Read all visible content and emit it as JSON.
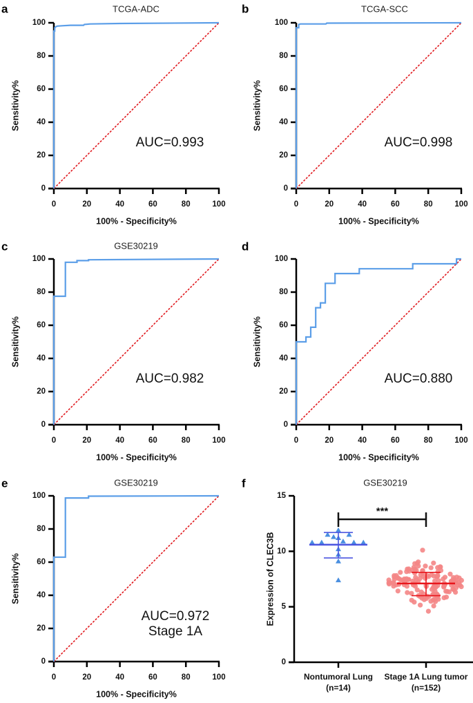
{
  "figure": {
    "colors": {
      "roc_curve": "#5b9ee8",
      "reference_line": "#e0191e",
      "axis": "#000000",
      "nontumoral_points": "#4a8fe0",
      "nontumoral_bars": "#4b55e0",
      "tumor_points": "#f48686",
      "tumor_bars": "#e8151b"
    }
  },
  "chart_data": [
    {
      "panel": "a",
      "type": "line",
      "title": "TCGA-ADC",
      "xlabel": "100% - Specificity%",
      "ylabel": "Sensitivity%",
      "xlim": [
        0,
        100
      ],
      "ylim": [
        0,
        100
      ],
      "xticks": [
        "0",
        "20",
        "40",
        "60",
        "80",
        "100"
      ],
      "yticks": [
        "0",
        "20",
        "40",
        "60",
        "80",
        "100"
      ],
      "annotation": [
        "AUC=0.993"
      ],
      "series": [
        {
          "name": "ROC",
          "x": [
            0,
            0,
            0.5,
            0.5,
            1,
            2,
            5,
            10,
            18,
            18.5,
            22,
            40,
            100
          ],
          "y": [
            0,
            95,
            95,
            97,
            97.5,
            98,
            98.2,
            98.5,
            98.5,
            99,
            99.3,
            99.6,
            100
          ]
        },
        {
          "name": "Reference",
          "x": [
            0,
            100
          ],
          "y": [
            0,
            100
          ]
        }
      ]
    },
    {
      "panel": "b",
      "type": "line",
      "title": "TCGA-SCC",
      "xlabel": "100% - Specificity%",
      "ylabel": "Sensitivity%",
      "xlim": [
        0,
        100
      ],
      "ylim": [
        0,
        100
      ],
      "xticks": [
        "0",
        "20",
        "40",
        "60",
        "80",
        "100"
      ],
      "yticks": [
        "0",
        "20",
        "40",
        "60",
        "80",
        "100"
      ],
      "annotation": [
        "AUC=0.998"
      ],
      "series": [
        {
          "name": "ROC",
          "x": [
            0,
            0,
            1.5,
            1.5,
            2.5,
            18,
            18.5,
            100
          ],
          "y": [
            0,
            97,
            97,
            99,
            99.3,
            99.3,
            99.8,
            100
          ]
        },
        {
          "name": "Reference",
          "x": [
            0,
            100
          ],
          "y": [
            0,
            100
          ]
        }
      ]
    },
    {
      "panel": "c",
      "type": "line",
      "title": "GSE30219",
      "xlabel": "100% - Specificity%",
      "ylabel": "Sensitivity%",
      "xlim": [
        0,
        100
      ],
      "ylim": [
        0,
        100
      ],
      "xticks": [
        "0",
        "20",
        "40",
        "60",
        "80",
        "100"
      ],
      "yticks": [
        "0",
        "20",
        "40",
        "60",
        "80",
        "100"
      ],
      "annotation": [
        "AUC=0.982"
      ],
      "series": [
        {
          "name": "ROC",
          "x": [
            0,
            0,
            7,
            7,
            14,
            14,
            21,
            21,
            100
          ],
          "y": [
            0,
            77.5,
            77.5,
            98,
            98,
            99,
            99,
            99.5,
            100
          ]
        },
        {
          "name": "Reference",
          "x": [
            0,
            100
          ],
          "y": [
            0,
            100
          ]
        }
      ]
    },
    {
      "panel": "d",
      "type": "line",
      "title": "",
      "xlabel": "100% - Specificity%",
      "ylabel": "Sensitivity%",
      "xlim": [
        0,
        100
      ],
      "ylim": [
        0,
        100
      ],
      "xticks": [
        "0",
        "20",
        "40",
        "60",
        "80",
        "100"
      ],
      "yticks": [
        "0",
        "20",
        "40",
        "60",
        "80",
        "100"
      ],
      "annotation": [
        "AUC=0.880"
      ],
      "series": [
        {
          "name": "ROC",
          "x": [
            0,
            0,
            5.9,
            5.9,
            8.8,
            8.8,
            11.8,
            11.8,
            14.7,
            14.7,
            17.6,
            17.6,
            23.5,
            23.5,
            38.2,
            38.2,
            70.6,
            70.6,
            97.1,
            97.1,
            100
          ],
          "y": [
            0,
            50,
            50,
            52.9,
            52.9,
            58.8,
            58.8,
            70.6,
            70.6,
            73.5,
            73.5,
            85.3,
            85.3,
            91.2,
            91.2,
            94.1,
            94.1,
            97.1,
            97.1,
            100,
            100
          ]
        },
        {
          "name": "Reference",
          "x": [
            0,
            100
          ],
          "y": [
            0,
            100
          ]
        }
      ]
    },
    {
      "panel": "e",
      "type": "line",
      "title": "GSE30219",
      "xlabel": "100% - Specificity%",
      "ylabel": "Sensitivity%",
      "xlim": [
        0,
        100
      ],
      "ylim": [
        0,
        100
      ],
      "xticks": [
        "0",
        "20",
        "40",
        "60",
        "80",
        "100"
      ],
      "yticks": [
        "0",
        "20",
        "40",
        "60",
        "80",
        "100"
      ],
      "annotation": [
        "AUC=0.972",
        "Stage 1A"
      ],
      "series": [
        {
          "name": "ROC",
          "x": [
            0,
            0,
            7,
            7,
            21,
            21,
            100
          ],
          "y": [
            0,
            63,
            63,
            98.7,
            98.7,
            99.8,
            100
          ]
        },
        {
          "name": "Reference",
          "x": [
            0,
            100
          ],
          "y": [
            0,
            100
          ]
        }
      ]
    },
    {
      "panel": "f",
      "type": "scatter",
      "title": "GSE30219",
      "xlabel": "",
      "ylabel": "Expression of CLEC3B",
      "ylim": [
        0,
        15
      ],
      "yticks": [
        "0",
        "5",
        "10",
        "15"
      ],
      "categories": [
        {
          "label": "Nontumoral Lung",
          "n_label": "(n=14)"
        },
        {
          "label": "Stage 1A Lung tumor",
          "n_label": "(n=152)"
        }
      ],
      "significance": "***",
      "groups": [
        {
          "name": "Nontumoral Lung",
          "n": 14,
          "mean": 10.6,
          "sd_upper": 11.7,
          "sd_lower": 9.4,
          "values": [
            11.9,
            11.5,
            11.5,
            11.3,
            11.2,
            10.9,
            10.8,
            10.8,
            10.8,
            10.8,
            10.2,
            9.7,
            9.1,
            7.4
          ],
          "offsets": [
            0,
            -0.45,
            0.45,
            -0.2,
            0,
            0.2,
            -1.1,
            -0.7,
            0.65,
            1.05,
            0,
            0,
            0,
            0
          ]
        },
        {
          "name": "Stage 1A Lung tumor",
          "n": 152,
          "mean": 7.1,
          "sd_upper": 8.1,
          "sd_lower": 6.0,
          "min": 4.6,
          "max": 10.1
        }
      ]
    }
  ]
}
